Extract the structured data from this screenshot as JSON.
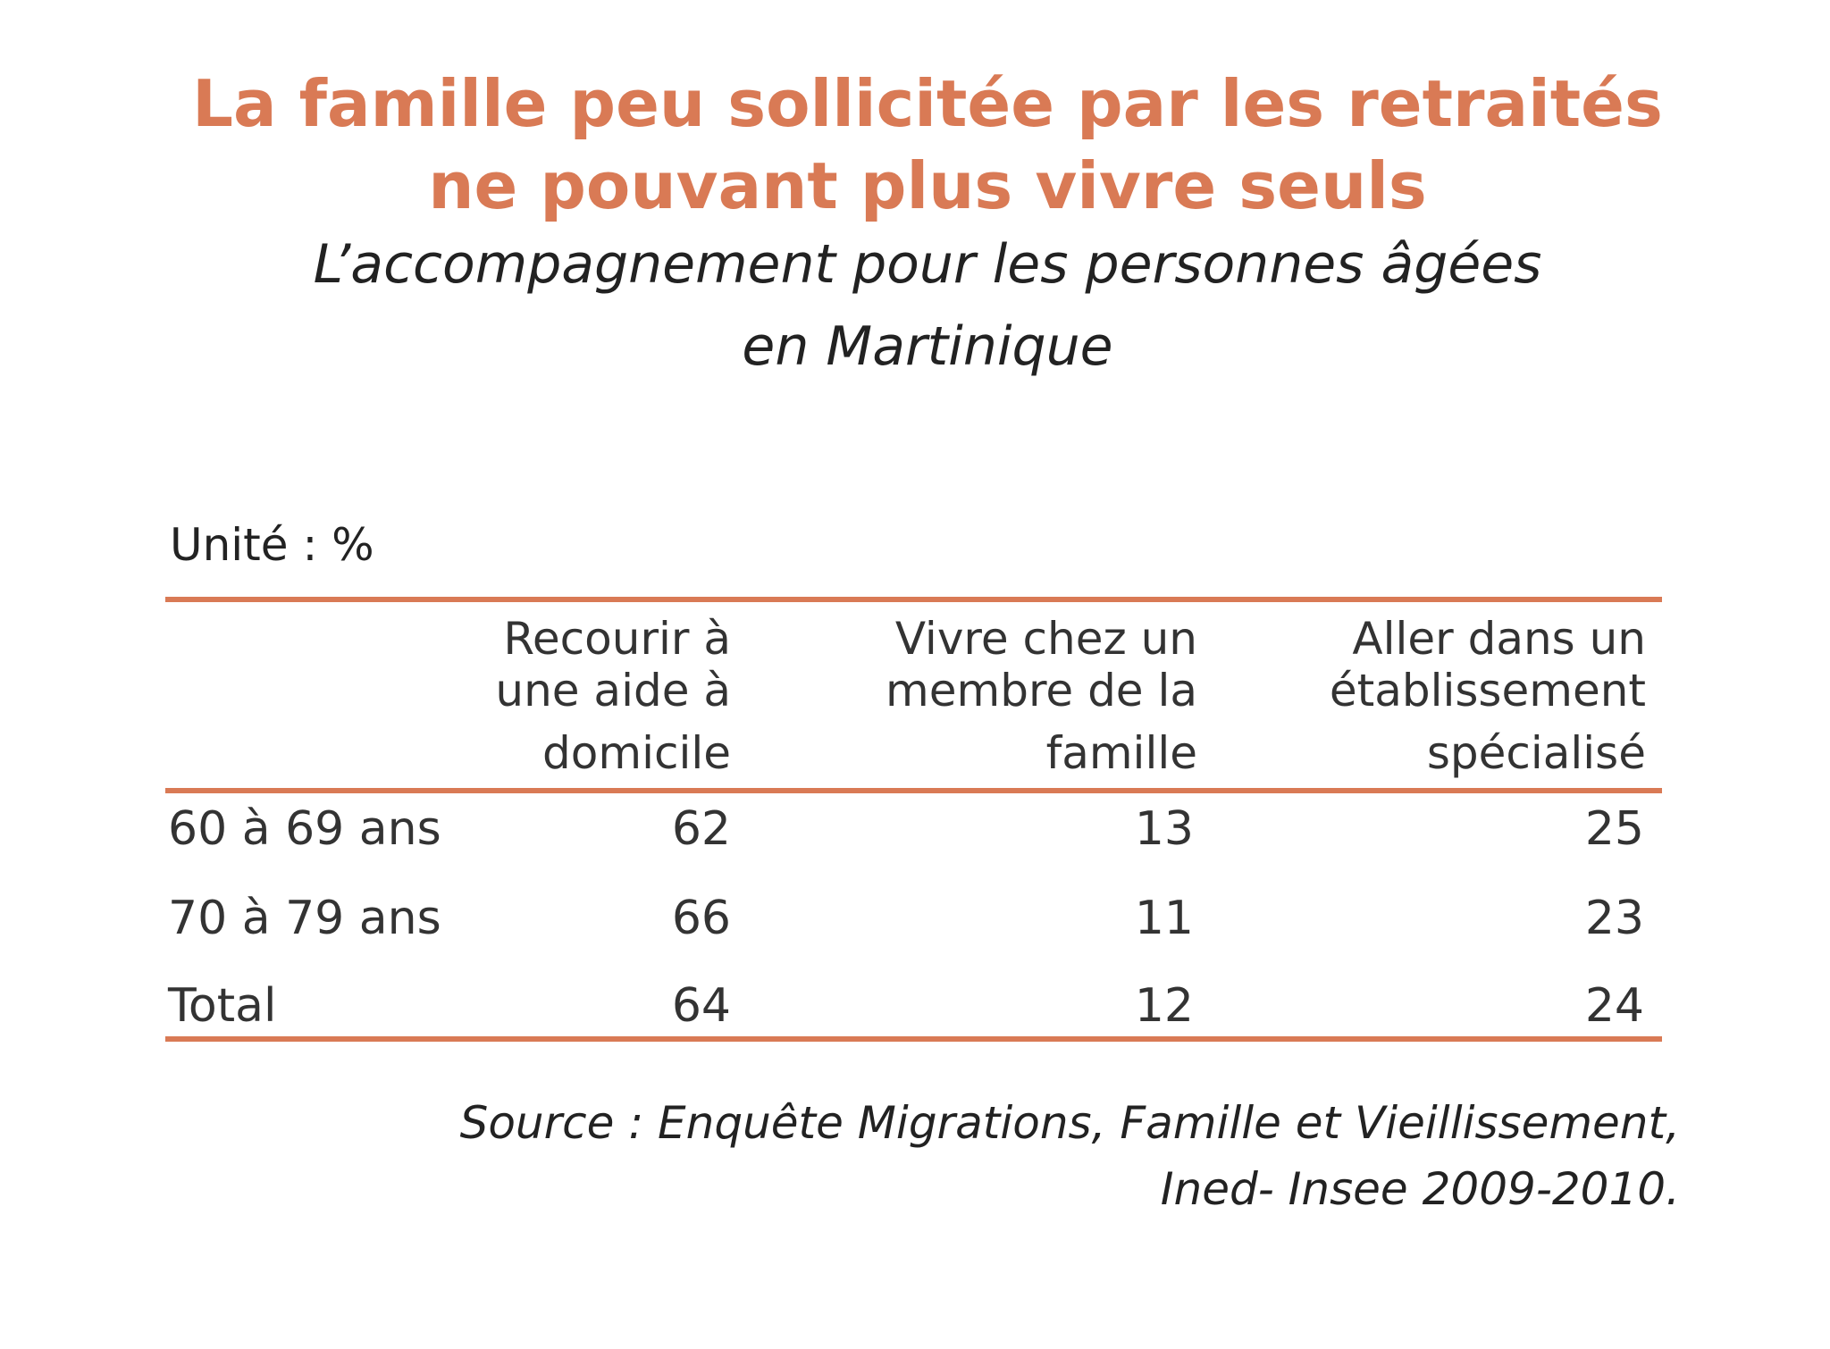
{
  "chart_data": {
    "type": "table",
    "title": [
      "La famille peu sollicitée par les retraités",
      "ne pouvant plus vivre seuls"
    ],
    "subtitle": [
      "L’accompagnement pour les personnes âgées",
      "en Martinique"
    ],
    "unit": "Unité : %",
    "columns": [
      [
        "Recourir à",
        "une aide à",
        "domicile"
      ],
      [
        "Vivre chez un",
        "membre de la",
        "famille"
      ],
      [
        "Aller dans un",
        "établissement",
        "spécialisé"
      ]
    ],
    "rows": [
      {
        "label": "60 à 69 ans",
        "values": [
          "62",
          "13",
          "25"
        ]
      },
      {
        "label": "70 à 79 ans",
        "values": [
          "66",
          "11",
          "23"
        ]
      },
      {
        "label": "Total",
        "values": [
          "64",
          "12",
          "24"
        ]
      }
    ],
    "source": [
      "Source : Enquête Migrations, Famille et Vieillissement,",
      "Ined- Insee 2009-2010."
    ],
    "colors": {
      "accent": "#d97a55",
      "text": "#333333"
    }
  }
}
